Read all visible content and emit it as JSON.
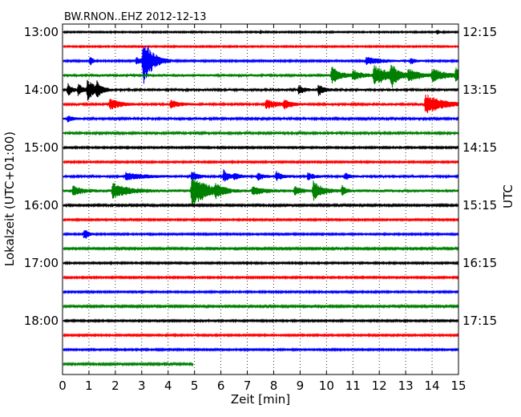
{
  "chart_data": {
    "type": "line",
    "title": "BW.RNON..EHZ 2012-12-13",
    "xlabel": "Zeit  [min]",
    "ylabel_left": "Lokalzeit (UTC+01:00)",
    "ylabel_right": "UTC",
    "xlim": [
      0,
      15
    ],
    "x_ticks": [
      "0",
      "1",
      "2",
      "3",
      "4",
      "5",
      "6",
      "7",
      "8",
      "9",
      "10",
      "11",
      "12",
      "13",
      "14",
      "15"
    ],
    "vertical_grid": true,
    "trace_interval_min": 15,
    "left_ticks": [
      "13:00",
      "14:00",
      "15:00",
      "16:00",
      "17:00",
      "18:00"
    ],
    "right_ticks": [
      "12:15",
      "13:15",
      "14:15",
      "15:15",
      "16:15",
      "17:15"
    ],
    "series_colors": [
      "#000000",
      "#ff0000",
      "#0000ff",
      "#008000"
    ],
    "series": [
      {
        "start": "13:00",
        "color": "#000000",
        "end_min": 15,
        "noise": 0.6,
        "events": [
          {
            "t": 7.5,
            "amp": 2.5,
            "dur": 0.1
          },
          {
            "t": 14.2,
            "amp": 3,
            "dur": 0.1
          }
        ]
      },
      {
        "start": "13:15",
        "color": "#ff0000",
        "end_min": 15,
        "noise": 0.6,
        "events": []
      },
      {
        "start": "13:30",
        "color": "#0000ff",
        "end_min": 15,
        "noise": 0.7,
        "events": [
          {
            "t": 1.05,
            "amp": 6,
            "dur": 0.1
          },
          {
            "t": 2.8,
            "amp": 5,
            "dur": 0.2
          },
          {
            "t": 3.05,
            "amp": 30,
            "dur": 0.35
          },
          {
            "t": 11.5,
            "amp": 5,
            "dur": 0.6
          },
          {
            "t": 13.2,
            "amp": 4,
            "dur": 0.2
          }
        ]
      },
      {
        "start": "13:45",
        "color": "#008000",
        "end_min": 15,
        "noise": 1.1,
        "events": [
          {
            "t": 10.2,
            "amp": 11,
            "dur": 0.3
          },
          {
            "t": 11.0,
            "amp": 7,
            "dur": 0.3
          },
          {
            "t": 11.8,
            "amp": 12,
            "dur": 0.6
          },
          {
            "t": 12.45,
            "amp": 14,
            "dur": 0.2
          },
          {
            "t": 13.1,
            "amp": 7,
            "dur": 0.4
          },
          {
            "t": 14.0,
            "amp": 8,
            "dur": 0.5
          },
          {
            "t": 14.9,
            "amp": 9,
            "dur": 0.2
          }
        ]
      },
      {
        "start": "14:00",
        "color": "#000000",
        "end_min": 15,
        "noise": 1.0,
        "events": [
          {
            "t": 0.2,
            "amp": 8,
            "dur": 0.15
          },
          {
            "t": 0.6,
            "amp": 8,
            "dur": 0.15
          },
          {
            "t": 0.95,
            "amp": 13,
            "dur": 0.3
          },
          {
            "t": 1.3,
            "amp": 8,
            "dur": 0.15
          },
          {
            "t": 8.95,
            "amp": 6,
            "dur": 0.2
          },
          {
            "t": 9.7,
            "amp": 7,
            "dur": 0.2
          }
        ]
      },
      {
        "start": "14:15",
        "color": "#ff0000",
        "end_min": 15,
        "noise": 1.0,
        "events": [
          {
            "t": 1.8,
            "amp": 7,
            "dur": 0.35
          },
          {
            "t": 4.1,
            "amp": 5,
            "dur": 0.3
          },
          {
            "t": 7.7,
            "amp": 6,
            "dur": 0.4
          },
          {
            "t": 8.4,
            "amp": 5,
            "dur": 0.3
          },
          {
            "t": 13.75,
            "amp": 13,
            "dur": 0.6
          }
        ]
      },
      {
        "start": "14:30",
        "color": "#0000ff",
        "end_min": 15,
        "noise": 0.9,
        "events": [
          {
            "t": 0.2,
            "amp": 4,
            "dur": 0.2
          }
        ]
      },
      {
        "start": "14:45",
        "color": "#008000",
        "end_min": 15,
        "noise": 0.9,
        "events": []
      },
      {
        "start": "15:00",
        "color": "#000000",
        "end_min": 15,
        "noise": 0.7,
        "events": []
      },
      {
        "start": "15:15",
        "color": "#ff0000",
        "end_min": 15,
        "noise": 0.7,
        "events": []
      },
      {
        "start": "15:30",
        "color": "#0000ff",
        "end_min": 15,
        "noise": 1.0,
        "events": [
          {
            "t": 2.4,
            "amp": 5,
            "dur": 0.6
          },
          {
            "t": 4.9,
            "amp": 7,
            "dur": 0.2
          },
          {
            "t": 6.1,
            "amp": 8,
            "dur": 0.2
          },
          {
            "t": 6.5,
            "amp": 4,
            "dur": 0.2
          },
          {
            "t": 7.4,
            "amp": 5,
            "dur": 0.2
          },
          {
            "t": 8.1,
            "amp": 6,
            "dur": 0.2
          },
          {
            "t": 9.3,
            "amp": 5,
            "dur": 0.2
          },
          {
            "t": 10.7,
            "amp": 4,
            "dur": 0.2
          }
        ]
      },
      {
        "start": "15:45",
        "color": "#008000",
        "end_min": 15,
        "noise": 1.3,
        "events": [
          {
            "t": 0.4,
            "amp": 6,
            "dur": 0.3
          },
          {
            "t": 1.9,
            "amp": 10,
            "dur": 0.5
          },
          {
            "t": 4.9,
            "amp": 22,
            "dur": 0.5
          },
          {
            "t": 5.8,
            "amp": 6,
            "dur": 0.3
          },
          {
            "t": 7.2,
            "amp": 5,
            "dur": 0.4
          },
          {
            "t": 8.8,
            "amp": 6,
            "dur": 0.2
          },
          {
            "t": 9.5,
            "amp": 12,
            "dur": 0.3
          },
          {
            "t": 10.6,
            "amp": 8,
            "dur": 0.1
          }
        ]
      },
      {
        "start": "16:00",
        "color": "#000000",
        "end_min": 15,
        "noise": 0.8,
        "events": []
      },
      {
        "start": "16:15",
        "color": "#ff0000",
        "end_min": 15,
        "noise": 0.7,
        "events": []
      },
      {
        "start": "16:30",
        "color": "#0000ff",
        "end_min": 15,
        "noise": 0.7,
        "events": [
          {
            "t": 0.82,
            "amp": 8,
            "dur": 0.15
          }
        ]
      },
      {
        "start": "16:45",
        "color": "#008000",
        "end_min": 15,
        "noise": 0.8,
        "events": []
      },
      {
        "start": "17:00",
        "color": "#000000",
        "end_min": 15,
        "noise": 0.7,
        "events": []
      },
      {
        "start": "17:15",
        "color": "#ff0000",
        "end_min": 15,
        "noise": 0.7,
        "events": []
      },
      {
        "start": "17:30",
        "color": "#0000ff",
        "end_min": 15,
        "noise": 0.7,
        "events": []
      },
      {
        "start": "17:45",
        "color": "#008000",
        "end_min": 15,
        "noise": 0.8,
        "events": []
      },
      {
        "start": "18:00",
        "color": "#000000",
        "end_min": 15,
        "noise": 0.7,
        "events": []
      },
      {
        "start": "18:15",
        "color": "#ff0000",
        "end_min": 15,
        "noise": 0.7,
        "events": []
      },
      {
        "start": "18:30",
        "color": "#0000ff",
        "end_min": 15,
        "noise": 0.7,
        "events": []
      },
      {
        "start": "18:45",
        "color": "#008000",
        "end_min": 4.95,
        "noise": 0.8,
        "events": []
      }
    ]
  }
}
